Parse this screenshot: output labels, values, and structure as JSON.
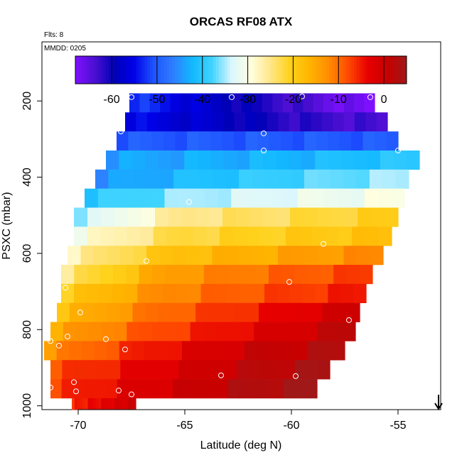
{
  "chart_data": {
    "type": "heatmap",
    "title": "ORCAS RF08 ATX",
    "flights_label": "Flts: 8",
    "date_label": "MMDD: 0205",
    "xlabel": "Latitude (deg N)",
    "ylabel": "PSXC (mbar)",
    "xlim": [
      -71.7,
      -53.0
    ],
    "ylim": [
      1010,
      45
    ],
    "x_ticks": [
      -70,
      -65,
      -60,
      -55
    ],
    "y_ticks": [
      200,
      400,
      600,
      800,
      1000
    ],
    "colorbar": {
      "range": [
        -68,
        5
      ],
      "ticks": [
        -60,
        -50,
        -40,
        -30,
        -20,
        -10,
        0
      ],
      "colors": [
        "#7f10ff",
        "#4b0fd1",
        "#0000b8",
        "#0000e8",
        "#1e52ff",
        "#2f7dff",
        "#12b8ff",
        "#3fd3ff",
        "#d8f6ff",
        "#ffffe0",
        "#ffe68a",
        "#ffd21c",
        "#ffb500",
        "#ff8c00",
        "#ff4a00",
        "#e80000",
        "#c80000",
        "#a01818"
      ]
    },
    "rows": [
      {
        "p_top": 180,
        "p_bot": 230,
        "x_start": -67.6,
        "x_end": -56.1,
        "values": [
          -52,
          -58,
          -63,
          -68
        ]
      },
      {
        "p_top": 230,
        "p_bot": 280,
        "x_start": -67.8,
        "x_end": -55.5,
        "values": [
          -55,
          -58,
          -62,
          -64
        ]
      },
      {
        "p_top": 280,
        "p_bot": 330,
        "x_start": -68.2,
        "x_end": -55.0,
        "values": [
          -50,
          -50,
          -50,
          -50
        ]
      },
      {
        "p_top": 330,
        "p_bot": 380,
        "x_start": -68.7,
        "x_end": -54.0,
        "values": [
          -44,
          -43,
          -42,
          -40
        ]
      },
      {
        "p_top": 380,
        "p_bot": 430,
        "x_start": -69.2,
        "x_end": -54.5,
        "values": [
          -45,
          -41,
          -38,
          -35
        ]
      },
      {
        "p_top": 430,
        "p_bot": 480,
        "x_start": -69.7,
        "x_end": -54.7,
        "values": [
          -40,
          -35,
          -32,
          -30
        ]
      },
      {
        "p_top": 480,
        "p_bot": 530,
        "x_start": -70.2,
        "x_end": -55.0,
        "values": [
          -35,
          -25,
          -23,
          -20
        ]
      },
      {
        "p_top": 530,
        "p_bot": 580,
        "x_start": -70.2,
        "x_end": -55.3,
        "values": [
          -30,
          -22,
          -20,
          -18
        ]
      },
      {
        "p_top": 580,
        "p_bot": 630,
        "x_start": -70.5,
        "x_end": -55.7,
        "values": [
          -27,
          -18,
          -15,
          -12
        ]
      },
      {
        "p_top": 630,
        "p_bot": 680,
        "x_start": -70.8,
        "x_end": -56.2,
        "values": [
          -25,
          -14,
          -10,
          -7
        ]
      },
      {
        "p_top": 680,
        "p_bot": 730,
        "x_start": -70.8,
        "x_end": -56.5,
        "values": [
          -20,
          -12,
          -8,
          -5
        ]
      },
      {
        "p_top": 730,
        "p_bot": 780,
        "x_start": -71.0,
        "x_end": -56.8,
        "values": [
          -18,
          -10,
          -5,
          0
        ]
      },
      {
        "p_top": 780,
        "p_bot": 830,
        "x_start": -71.3,
        "x_end": -57.0,
        "values": [
          -15,
          -8,
          -3,
          2
        ]
      },
      {
        "p_top": 830,
        "p_bot": 880,
        "x_start": -71.6,
        "x_end": -57.5,
        "values": [
          -13,
          -5,
          0,
          3
        ]
      },
      {
        "p_top": 880,
        "p_bot": 930,
        "x_start": -71.3,
        "x_end": -58.2,
        "values": [
          -8,
          -3,
          1,
          4
        ]
      },
      {
        "p_top": 930,
        "p_bot": 980,
        "x_start": -71.3,
        "x_end": -58.8,
        "values": [
          -7,
          -2,
          2,
          5
        ]
      },
      {
        "p_top": 980,
        "p_bot": 1010,
        "x_start": -70.3,
        "x_end": -67.3,
        "values": [
          -6,
          -4,
          -2,
          0
        ]
      }
    ],
    "points": [
      {
        "x": -67.5,
        "p": 190
      },
      {
        "x": -62.8,
        "p": 190
      },
      {
        "x": -59.5,
        "p": 188
      },
      {
        "x": -56.3,
        "p": 190
      },
      {
        "x": -68.0,
        "p": 280
      },
      {
        "x": -61.3,
        "p": 285
      },
      {
        "x": -61.3,
        "p": 330
      },
      {
        "x": -55.0,
        "p": 330
      },
      {
        "x": -53.8,
        "p": 330
      },
      {
        "x": -69.5,
        "p": 375
      },
      {
        "x": -70.1,
        "p": 468
      },
      {
        "x": -64.8,
        "p": 465
      },
      {
        "x": -58.5,
        "p": 575
      },
      {
        "x": -66.8,
        "p": 620
      },
      {
        "x": -70.6,
        "p": 690
      },
      {
        "x": -60.1,
        "p": 675
      },
      {
        "x": -69.9,
        "p": 755
      },
      {
        "x": -57.3,
        "p": 775
      },
      {
        "x": -71.3,
        "p": 830
      },
      {
        "x": -70.5,
        "p": 818
      },
      {
        "x": -70.9,
        "p": 842
      },
      {
        "x": -68.7,
        "p": 825
      },
      {
        "x": -67.8,
        "p": 852
      },
      {
        "x": -63.3,
        "p": 920
      },
      {
        "x": -59.8,
        "p": 922
      },
      {
        "x": -70.2,
        "p": 938
      },
      {
        "x": -71.3,
        "p": 952
      },
      {
        "x": -70.1,
        "p": 962
      },
      {
        "x": -68.1,
        "p": 960
      },
      {
        "x": -67.5,
        "p": 970
      }
    ],
    "arrow": {
      "x": -53.1,
      "direction": "down"
    }
  }
}
